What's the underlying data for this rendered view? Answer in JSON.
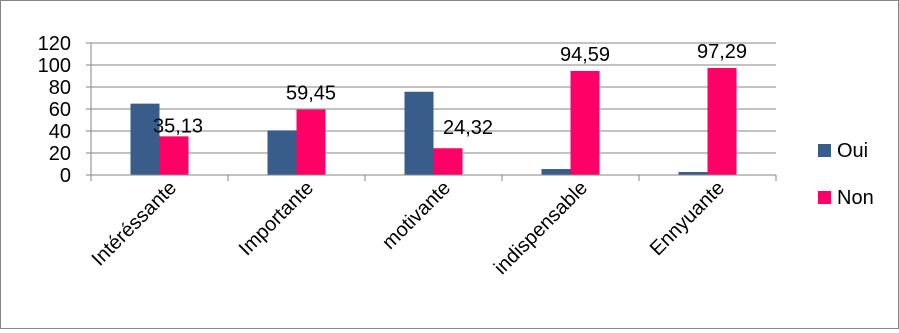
{
  "chart_data": {
    "type": "bar",
    "categories": [
      "Intéréssante",
      "Importante",
      "motivante",
      "indispensable",
      "Ennyuante"
    ],
    "series": [
      {
        "name": "Oui",
        "color": "#385D8A",
        "values": [
          64.87,
          40.55,
          75.68,
          5.41,
          2.71
        ]
      },
      {
        "name": "Non",
        "color": "#FF0066",
        "values": [
          35.13,
          59.45,
          24.32,
          94.59,
          97.29
        ]
      }
    ],
    "data_labels": [
      {
        "series": "Non",
        "category": "Intéréssante",
        "text": "35,13"
      },
      {
        "series": "Non",
        "category": "Importante",
        "text": "59,45"
      },
      {
        "series": "Non",
        "category": "motivante",
        "text": "24,32"
      },
      {
        "series": "Non",
        "category": "indispensable",
        "text": "94,59"
      },
      {
        "series": "Non",
        "category": "Ennyuante",
        "text": "97,29"
      }
    ],
    "yticks": [
      "0",
      "20",
      "40",
      "60",
      "80",
      "100",
      "120"
    ],
    "ylim": [
      0,
      120
    ],
    "grid": true,
    "legend_position": "right",
    "title": "",
    "xlabel": "",
    "ylabel": ""
  }
}
